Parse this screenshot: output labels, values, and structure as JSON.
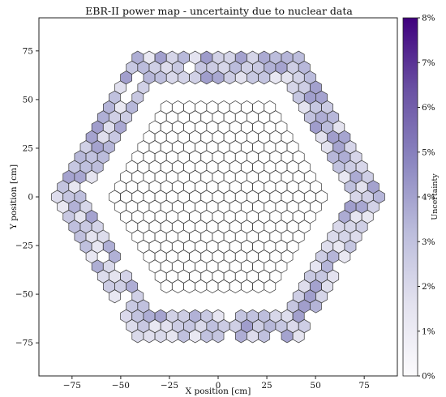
{
  "chart_data": {
    "type": "heatmap",
    "title": "EBR-II power map - uncertainty due to nuclear data",
    "xlabel": "X position [cm]",
    "ylabel": "Y position [cm]",
    "xlim": [
      -92,
      92
    ],
    "ylim": [
      -92,
      92
    ],
    "xticks": [
      -75,
      -50,
      -25,
      0,
      25,
      50,
      75
    ],
    "yticks": [
      75,
      50,
      25,
      0,
      -25,
      -50,
      -75
    ],
    "xtick_labels": [
      "−75",
      "−50",
      "−25",
      "0",
      "25",
      "50",
      "75"
    ],
    "ytick_labels": [
      "75",
      "50",
      "25",
      "0",
      "−25",
      "−50",
      "−75"
    ],
    "grid": false,
    "cell_shape": "hexagon",
    "hex_pitch_cm": 5.9,
    "inner_region_rings": 9,
    "outer_annulus_rings": [
      12,
      14
    ],
    "outer_region_radius_cm": [
      58,
      91
    ],
    "inner_region_uncertainty_percent": 0.0,
    "outer_region_uncertainty_percent_range": [
      1.0,
      4.2
    ],
    "colorbar": {
      "label": "Uncertainty",
      "min": 0,
      "max": 8,
      "ticks": [
        "0%",
        "1%",
        "2%",
        "3%",
        "4%",
        "5%",
        "6%",
        "7%",
        "8%"
      ],
      "color_low": "#fcfbfd",
      "color_high": "#3f007d"
    }
  }
}
